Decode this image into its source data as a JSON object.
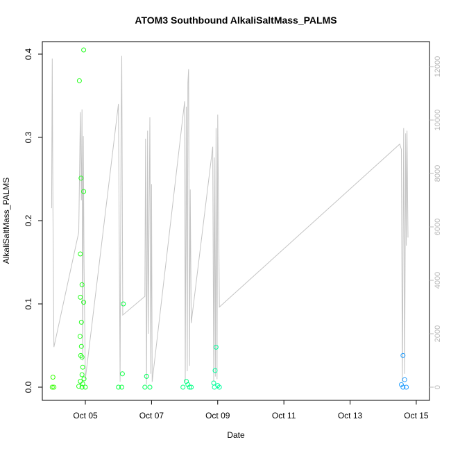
{
  "chart_data": {
    "type": "scatter",
    "title": "ATOM3 Southbound AlkaliSaltMass_PALMS",
    "xlabel": "Date",
    "ylabel": "AlkaliSaltMass_PALMS",
    "x_ticks": [
      "Oct 05",
      "Oct 07",
      "Oct 09",
      "Oct 11",
      "Oct 13",
      "Oct 15"
    ],
    "x_tick_days": [
      5,
      7,
      9,
      11,
      13,
      15
    ],
    "xlim": [
      3.7,
      15.4
    ],
    "y_ticks": [
      "0.0",
      "0.1",
      "0.2",
      "0.3",
      "0.4"
    ],
    "y_tick_values": [
      0,
      0.1,
      0.2,
      0.3,
      0.4
    ],
    "ylim": [
      0,
      0.4
    ],
    "y2_ticks": [
      "0",
      "2000",
      "4000",
      "6000",
      "8000",
      "10000",
      "12000"
    ],
    "y2_tick_values": [
      0,
      2000,
      4000,
      6000,
      8000,
      10000,
      12000
    ],
    "y2lim": [
      0,
      12000
    ],
    "grid": false,
    "legend": "none",
    "colors": {
      "altitude_line": "#c4c4c4",
      "axis": "#000000",
      "right_axis": "#b8b8b8",
      "point_gradient": [
        "#33ff00",
        "#00ff55",
        "#00ffaa",
        "#00eedd",
        "#2299ff"
      ]
    },
    "points": [
      {
        "x": 4.02,
        "y": 0.012
      },
      {
        "x": 4.0,
        "y": 0.0
      },
      {
        "x": 4.05,
        "y": 0.0
      },
      {
        "x": 4.82,
        "y": 0.368
      },
      {
        "x": 4.95,
        "y": 0.405
      },
      {
        "x": 4.87,
        "y": 0.251
      },
      {
        "x": 4.95,
        "y": 0.235
      },
      {
        "x": 4.85,
        "y": 0.16
      },
      {
        "x": 4.9,
        "y": 0.123
      },
      {
        "x": 4.85,
        "y": 0.108
      },
      {
        "x": 4.95,
        "y": 0.102
      },
      {
        "x": 4.88,
        "y": 0.078
      },
      {
        "x": 4.84,
        "y": 0.061
      },
      {
        "x": 4.88,
        "y": 0.049
      },
      {
        "x": 4.86,
        "y": 0.038
      },
      {
        "x": 4.9,
        "y": 0.036
      },
      {
        "x": 4.92,
        "y": 0.024
      },
      {
        "x": 4.9,
        "y": 0.015
      },
      {
        "x": 4.96,
        "y": 0.01
      },
      {
        "x": 4.85,
        "y": 0.007
      },
      {
        "x": 4.92,
        "y": 0.004
      },
      {
        "x": 4.8,
        "y": 0.001
      },
      {
        "x": 4.9,
        "y": 0.0
      },
      {
        "x": 5.0,
        "y": 0.0
      },
      {
        "x": 6.15,
        "y": 0.1
      },
      {
        "x": 6.12,
        "y": 0.016
      },
      {
        "x": 6.0,
        "y": 0.0
      },
      {
        "x": 6.1,
        "y": 0.0
      },
      {
        "x": 6.85,
        "y": 0.013
      },
      {
        "x": 6.8,
        "y": 0.0
      },
      {
        "x": 6.95,
        "y": 0.0
      },
      {
        "x": 8.05,
        "y": 0.007
      },
      {
        "x": 8.1,
        "y": 0.003
      },
      {
        "x": 7.95,
        "y": 0.0
      },
      {
        "x": 8.15,
        "y": 0.0
      },
      {
        "x": 8.2,
        "y": 0.0
      },
      {
        "x": 8.95,
        "y": 0.048
      },
      {
        "x": 8.92,
        "y": 0.02
      },
      {
        "x": 8.88,
        "y": 0.005
      },
      {
        "x": 8.9,
        "y": 0.0
      },
      {
        "x": 9.0,
        "y": 0.002
      },
      {
        "x": 9.05,
        "y": 0.0
      },
      {
        "x": 14.6,
        "y": 0.038
      },
      {
        "x": 14.65,
        "y": 0.009
      },
      {
        "x": 14.55,
        "y": 0.003
      },
      {
        "x": 14.6,
        "y": 0.0
      },
      {
        "x": 14.7,
        "y": 0.0
      }
    ],
    "altitude_line": [
      [
        3.98,
        6700
      ],
      [
        4.0,
        12300
      ],
      [
        4.02,
        6600
      ],
      [
        4.05,
        1500
      ],
      [
        4.8,
        5800
      ],
      [
        4.85,
        10300
      ],
      [
        4.88,
        7000
      ],
      [
        4.9,
        10400
      ],
      [
        4.92,
        1000
      ],
      [
        4.94,
        9400
      ],
      [
        4.96,
        4700
      ],
      [
        4.98,
        2500
      ],
      [
        5.0,
        300
      ],
      [
        6.0,
        10600
      ],
      [
        6.05,
        200
      ],
      [
        6.08,
        9600
      ],
      [
        6.1,
        12400
      ],
      [
        6.13,
        2700
      ],
      [
        6.8,
        3400
      ],
      [
        6.82,
        9300
      ],
      [
        6.85,
        100
      ],
      [
        6.88,
        9600
      ],
      [
        6.9,
        2000
      ],
      [
        6.95,
        10100
      ],
      [
        6.98,
        500
      ],
      [
        7.0,
        7600
      ],
      [
        7.02,
        200
      ],
      [
        8.0,
        10700
      ],
      [
        8.02,
        200
      ],
      [
        8.05,
        10500
      ],
      [
        8.08,
        600
      ],
      [
        8.1,
        11400
      ],
      [
        8.12,
        11900
      ],
      [
        8.15,
        800
      ],
      [
        8.17,
        7400
      ],
      [
        8.2,
        2400
      ],
      [
        8.85,
        9000
      ],
      [
        8.88,
        200
      ],
      [
        8.9,
        8600
      ],
      [
        8.93,
        400
      ],
      [
        8.95,
        9700
      ],
      [
        8.98,
        300
      ],
      [
        9.0,
        10200
      ],
      [
        9.05,
        3000
      ],
      [
        14.5,
        9100
      ],
      [
        14.55,
        8900
      ],
      [
        14.58,
        200
      ],
      [
        14.62,
        9700
      ],
      [
        14.65,
        500
      ],
      [
        14.68,
        9500
      ],
      [
        14.7,
        5300
      ],
      [
        14.72,
        9600
      ],
      [
        14.75,
        5600
      ]
    ]
  }
}
